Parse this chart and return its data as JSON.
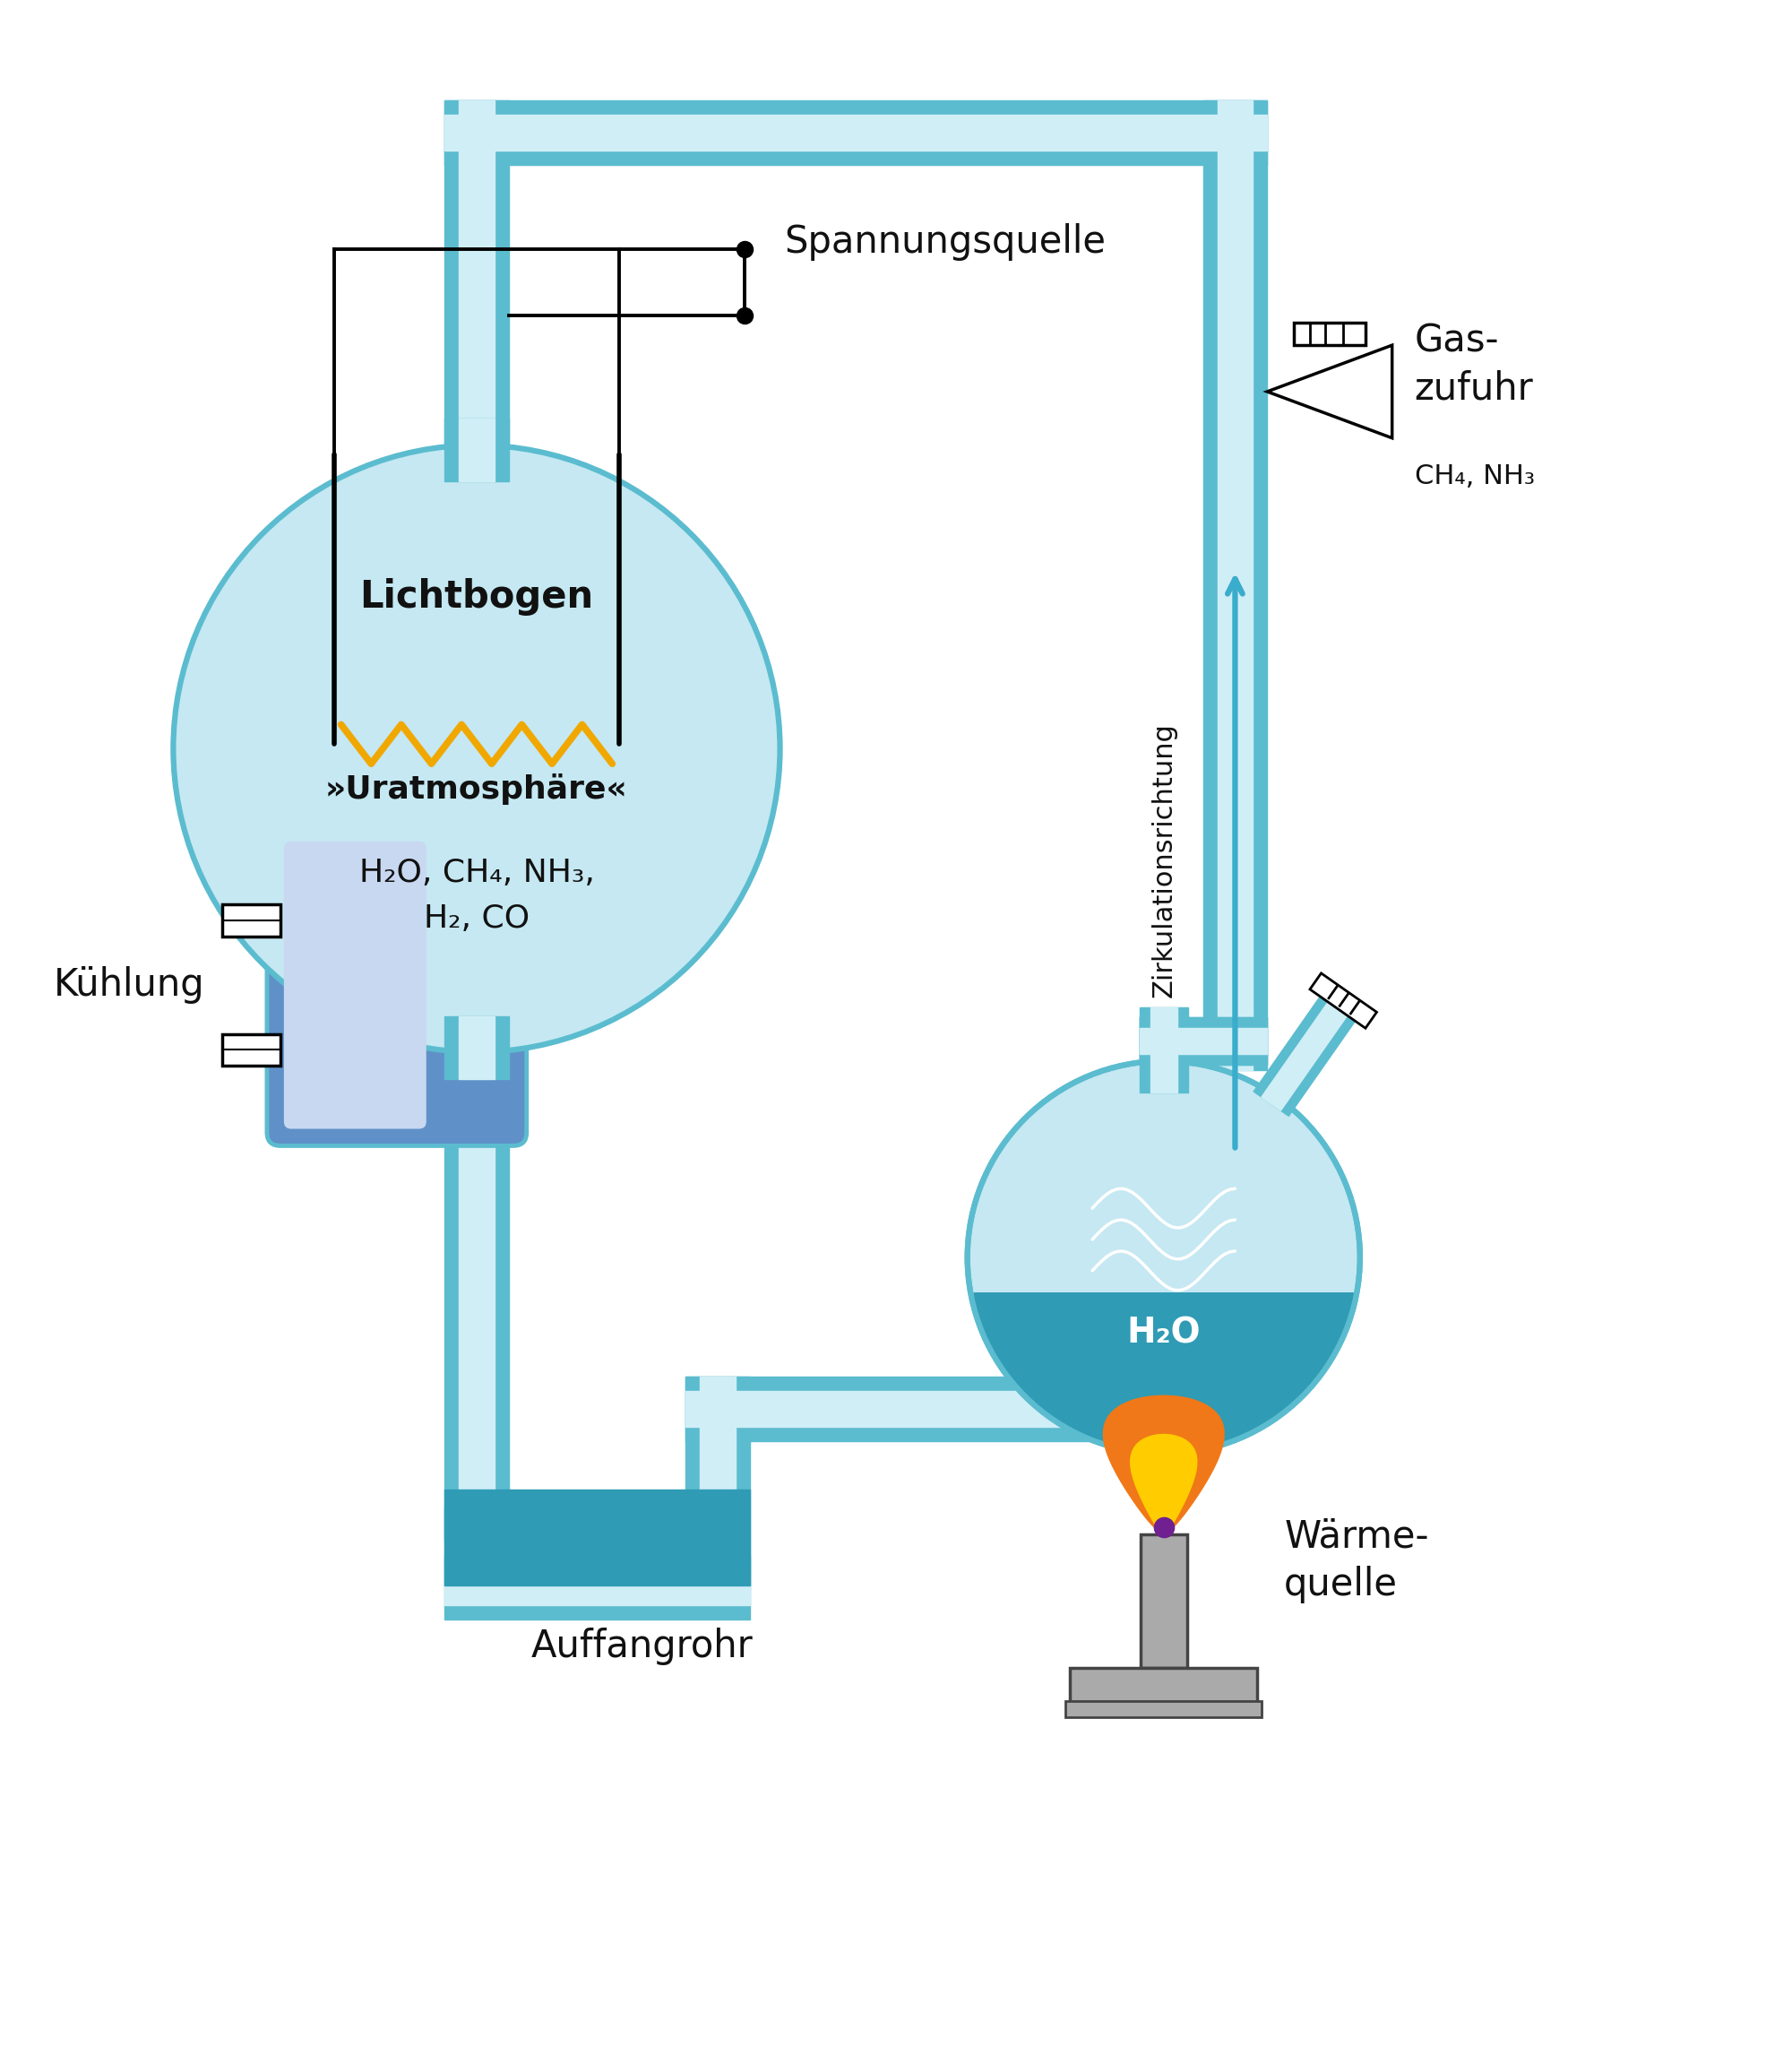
{
  "bg": "#ffffff",
  "tube_outer": "#5bbccf",
  "tube_inner": "#d0eef6",
  "tube_dark": "#2a8fa8",
  "flask_fill": "#c5e8f2",
  "water_fill": "#2f9bb5",
  "cooling_blue": "#6090c8",
  "cooling_light": "#a0b8e0",
  "cooling_lighter": "#c8d8f0",
  "wire_col": "#111111",
  "spark_col": "#f0a800",
  "arrow_col": "#3aaccc",
  "text_col": "#111111",
  "lichtbogen": "Lichtbogen",
  "uratm": "»Uratmosphäre«",
  "gases": "H₂O, CH₄, NH₃,\nH₂, CO",
  "spannungsquelle": "Spannungsquelle",
  "kuehlung": "Kühlung",
  "auffangrohr": "Auffangrohr",
  "zirkulation": "Zirkulationsrichtung",
  "gaszufuhr": "Gas-\nzufuhr",
  "ch4nh3": "CH₄, NH₃",
  "h2o": "H₂O",
  "waerme": "Wärme-\nquelle"
}
